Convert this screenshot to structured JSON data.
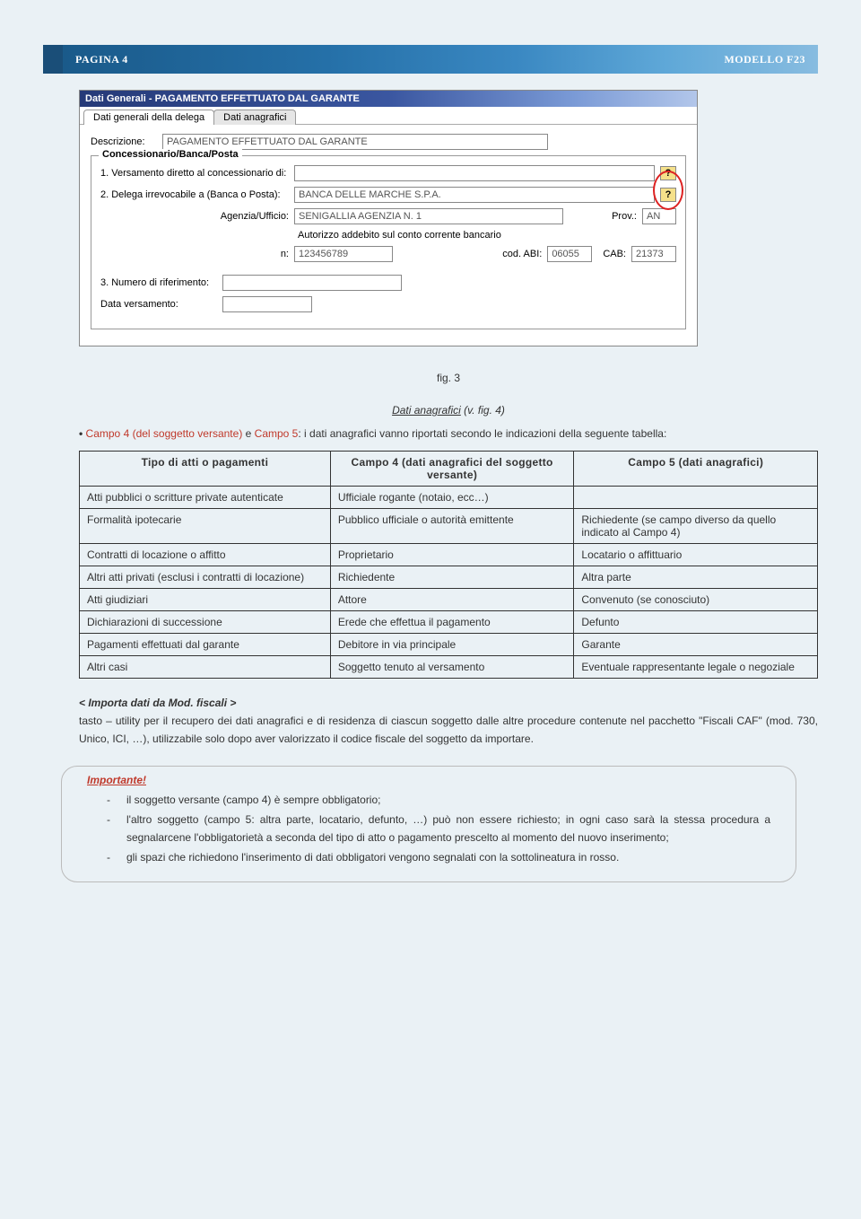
{
  "header": {
    "left": "PAGINA 4",
    "right": "MODELLO F23"
  },
  "form": {
    "title": "Dati Generali - PAGAMENTO EFFETTUATO DAL GARANTE",
    "tab1": "Dati generali della delega",
    "tab2": "Dati anagrafici",
    "descrizione_label": "Descrizione:",
    "descrizione_value": "PAGAMENTO EFFETTUATO DAL GARANTE",
    "fieldset_legend": "Concessionario/Banca/Posta",
    "line1": "1. Versamento diretto al concessionario di:",
    "line2": "2. Delega irrevocabile a (Banca o Posta):",
    "banca_value": "BANCA DELLE MARCHE S.P.A.",
    "agenzia_label": "Agenzia/Ufficio:",
    "agenzia_value": "SENIGALLIA AGENZIA N. 1",
    "prov_label": "Prov.:",
    "prov_value": "AN",
    "autorizzo": "Autorizzo addebito sul conto corrente bancario",
    "n_label": "n:",
    "n_value": "123456789",
    "abi_label": "cod. ABI:",
    "abi_value": "06055",
    "cab_label": "CAB:",
    "cab_value": "21373",
    "line3": "3. Numero di riferimento:",
    "data_label": "Data versamento:",
    "help": "?"
  },
  "caption": "fig. 3",
  "section": {
    "title_u": "Dati anagrafici",
    "title_rest": "  (v. fig. 4)",
    "campo_intro_a": "Campo 4 (del soggetto versante)",
    "campo_intro_b": " e ",
    "campo_intro_c": "Campo 5",
    "campo_intro_d": ": i dati anagrafici vanno riportati secondo le indicazioni della seguente tabella:"
  },
  "table": {
    "headers": [
      "Tipo di atti o pagamenti",
      "Campo 4 (dati anagrafici del soggetto versante)",
      "Campo 5 (dati anagrafici)"
    ],
    "rows": [
      [
        "Atti pubblici o scritture private autenticate",
        "Ufficiale rogante (notaio, ecc…)",
        ""
      ],
      [
        "Formalità ipotecarie",
        "Pubblico ufficiale o autorità emittente",
        "Richiedente (se campo diverso da quello indicato al Campo 4)"
      ],
      [
        "Contratti di locazione o affitto",
        "Proprietario",
        "Locatario o affittuario"
      ],
      [
        "Altri atti privati (esclusi i contratti di locazione)",
        "Richiedente",
        "Altra parte"
      ],
      [
        "Atti giudiziari",
        "Attore",
        "Convenuto (se conosciuto)"
      ],
      [
        "Dichiarazioni di successione",
        "Erede che effettua il pagamento",
        "Defunto"
      ],
      [
        "Pagamenti effettuati dal garante",
        "Debitore in via principale",
        "Garante"
      ],
      [
        "Altri casi",
        "Soggetto tenuto al versamento",
        "Eventuale rappresentante legale o negoziale"
      ]
    ]
  },
  "importa": "< Importa dati da Mod. fiscali >",
  "importa_text": "tasto – utility per il recupero dei dati anagrafici e di residenza di ciascun soggetto dalle altre procedure contenute nel pacchetto \"Fiscali CAF\" (mod. 730, Unico, ICI, …), utilizzabile solo dopo aver valorizzato il codice fiscale del soggetto da importare.",
  "note": {
    "title": "Importante!",
    "items": [
      "il soggetto versante (campo 4) è sempre obbligatorio;",
      "l'altro soggetto (campo 5: altra parte, locatario, defunto, …) può non essere richiesto; in ogni caso sarà la stessa procedura a segnalarcene l'obbligatorietà a seconda del tipo di atto o pagamento prescelto al momento del nuovo inserimento;",
      "gli spazi che richiedono l'inserimento di dati obbligatori vengono segnalati con la sottolineatura in rosso."
    ]
  }
}
